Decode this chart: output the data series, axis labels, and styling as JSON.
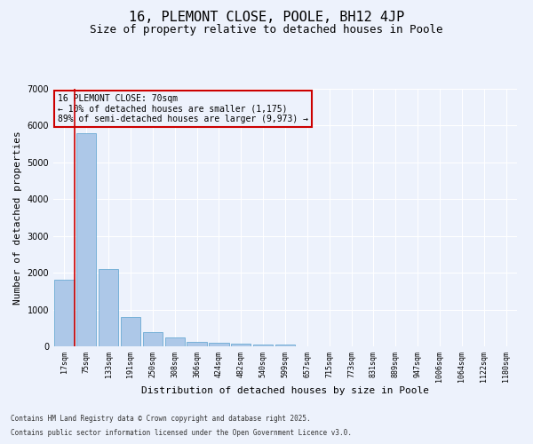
{
  "title1": "16, PLEMONT CLOSE, POOLE, BH12 4JP",
  "title2": "Size of property relative to detached houses in Poole",
  "xlabel": "Distribution of detached houses by size in Poole",
  "ylabel": "Number of detached properties",
  "categories": [
    "17sqm",
    "75sqm",
    "133sqm",
    "191sqm",
    "250sqm",
    "308sqm",
    "366sqm",
    "424sqm",
    "482sqm",
    "540sqm",
    "599sqm",
    "657sqm",
    "715sqm",
    "773sqm",
    "831sqm",
    "889sqm",
    "947sqm",
    "1006sqm",
    "1064sqm",
    "1122sqm",
    "1180sqm"
  ],
  "values": [
    1800,
    5800,
    2100,
    800,
    380,
    230,
    120,
    90,
    75,
    60,
    50,
    0,
    0,
    0,
    0,
    0,
    0,
    0,
    0,
    0,
    0
  ],
  "bar_color": "#adc8e8",
  "bar_edge_color": "#6aaad4",
  "vline_color": "#cc0000",
  "vline_x": 0.48,
  "annotation_text": "16 PLEMONT CLOSE: 70sqm\n← 10% of detached houses are smaller (1,175)\n89% of semi-detached houses are larger (9,973) →",
  "annotation_box_color": "#cc0000",
  "background_color": "#edf2fc",
  "grid_color": "#ffffff",
  "ylim": [
    0,
    7000
  ],
  "yticks": [
    0,
    1000,
    2000,
    3000,
    4000,
    5000,
    6000,
    7000
  ],
  "footer1": "Contains HM Land Registry data © Crown copyright and database right 2025.",
  "footer2": "Contains public sector information licensed under the Open Government Licence v3.0.",
  "title1_fontsize": 11,
  "title2_fontsize": 9,
  "tick_fontsize": 6,
  "ylabel_fontsize": 8,
  "xlabel_fontsize": 8,
  "annotation_fontsize": 7,
  "footer_fontsize": 5.5
}
